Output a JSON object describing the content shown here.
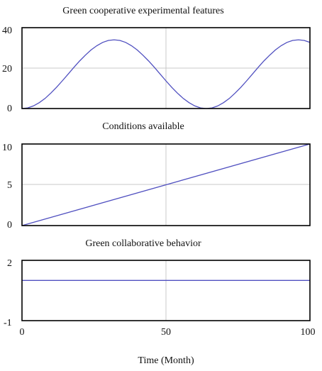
{
  "chart_data": [
    {
      "type": "line",
      "title": "Green cooperative experimental features",
      "xlim": [
        0,
        100
      ],
      "ylim": [
        0,
        40
      ],
      "yticks": [
        "0",
        "20",
        "40"
      ],
      "grid": true,
      "series": [
        {
          "x": [
            0,
            2,
            4,
            6,
            8,
            10,
            12,
            14,
            16,
            18,
            20,
            22,
            24,
            26,
            28,
            30,
            32,
            34,
            36,
            38,
            40,
            42,
            44,
            46,
            48,
            50,
            52,
            54,
            56,
            58,
            60,
            62,
            64,
            66,
            68,
            70,
            72,
            74,
            76,
            78,
            80,
            82,
            84,
            86,
            88,
            90,
            92,
            94,
            96,
            98,
            100
          ],
          "y": [
            0,
            0.3,
            1.3,
            2.9,
            5,
            7.6,
            10.5,
            13.7,
            17,
            20.3,
            23.5,
            26.4,
            29,
            31.1,
            32.7,
            33.7,
            34,
            33.7,
            32.7,
            31.1,
            29,
            26.4,
            23.5,
            20.3,
            17,
            13.7,
            10.5,
            7.6,
            5,
            2.9,
            1.3,
            0.3,
            0,
            0.3,
            1.3,
            2.9,
            5,
            7.6,
            10.5,
            13.7,
            17,
            20.3,
            23.5,
            26.4,
            29,
            31.1,
            32.7,
            33.7,
            34,
            33.7,
            32.7
          ]
        }
      ]
    },
    {
      "type": "line",
      "title": "Conditions available",
      "xlim": [
        0,
        100
      ],
      "ylim": [
        0,
        10
      ],
      "yticks": [
        "0",
        "5",
        "10"
      ],
      "grid": true,
      "series": [
        {
          "x": [
            0,
            100
          ],
          "y": [
            0,
            10
          ]
        }
      ]
    },
    {
      "type": "line",
      "title": "Green collaborative behavior",
      "xlim": [
        0,
        100
      ],
      "ylim": [
        -1,
        2
      ],
      "yticks": [
        "-1",
        "2"
      ],
      "xticks": [
        "0",
        "50",
        "100"
      ],
      "xlabel": "Time (Month)",
      "grid": true,
      "series": [
        {
          "x": [
            0,
            100
          ],
          "y": [
            1,
            1
          ]
        }
      ]
    }
  ]
}
